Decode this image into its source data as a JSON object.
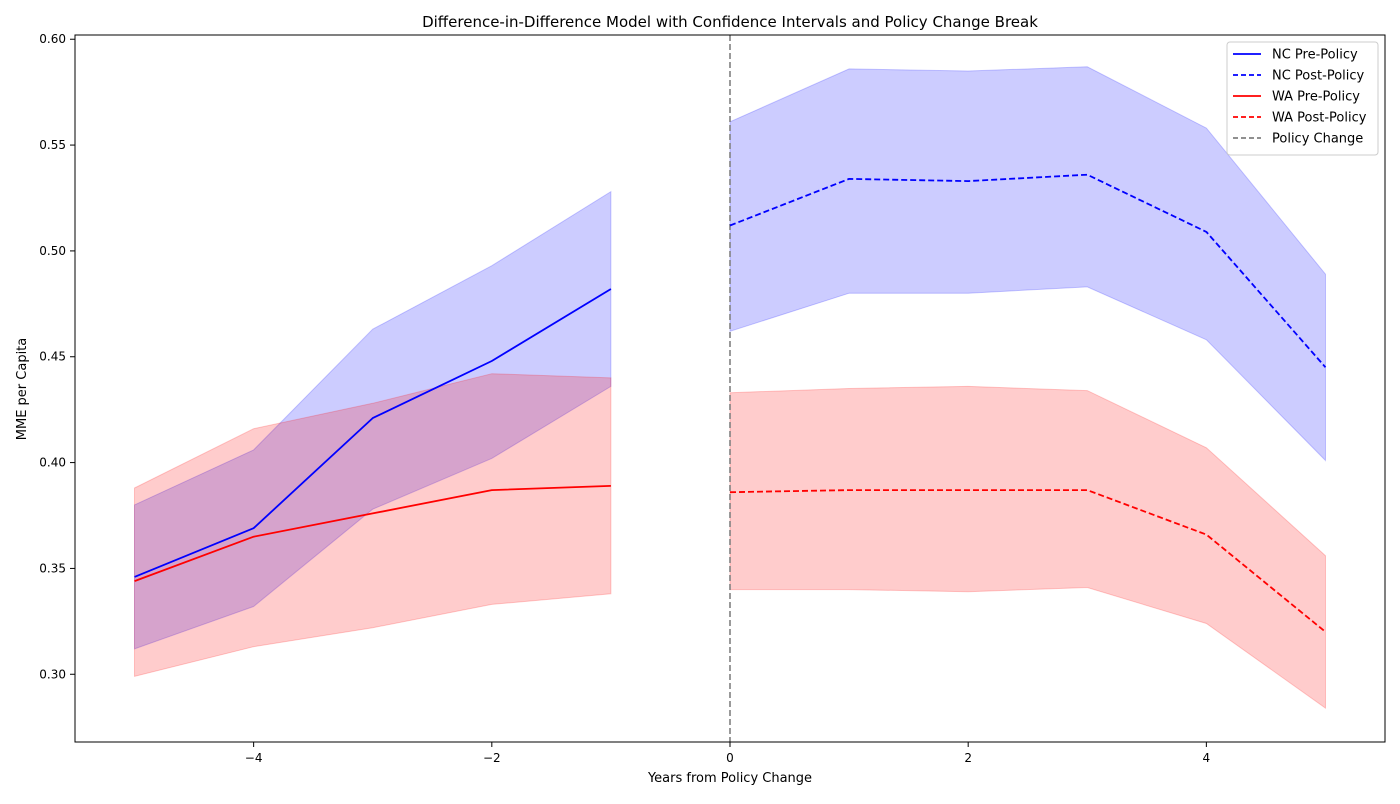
{
  "chart_data": {
    "type": "line",
    "title": "Difference-in-Difference Model with Confidence Intervals and Policy Change Break",
    "xlabel": "Years from Policy Change",
    "ylabel": "MME per Capita",
    "xlim": [
      -5.5,
      5.5
    ],
    "ylim": [
      0.268,
      0.602
    ],
    "xticks": [
      -4,
      -2,
      0,
      2,
      4
    ],
    "xtick_labels": [
      "−4",
      "−2",
      "0",
      "2",
      "4"
    ],
    "yticks": [
      0.3,
      0.35,
      0.4,
      0.45,
      0.5,
      0.55,
      0.6
    ],
    "ytick_labels": [
      "0.30",
      "0.35",
      "0.40",
      "0.45",
      "0.50",
      "0.55",
      "0.60"
    ],
    "grid": false,
    "legend_position": "top-right",
    "series": [
      {
        "name": "NC Pre-Policy",
        "color": "#0000ff",
        "linestyle": "solid",
        "x": [
          -5,
          -4,
          -3,
          -2,
          -1
        ],
        "y": [
          0.346,
          0.369,
          0.421,
          0.448,
          0.482
        ],
        "ci_lower": [
          0.312,
          0.332,
          0.378,
          0.402,
          0.436
        ],
        "ci_upper": [
          0.38,
          0.406,
          0.463,
          0.493,
          0.528
        ]
      },
      {
        "name": "NC Post-Policy",
        "color": "#0000ff",
        "linestyle": "dashed",
        "x": [
          0,
          1,
          2,
          3,
          4,
          5
        ],
        "y": [
          0.512,
          0.534,
          0.533,
          0.536,
          0.509,
          0.445
        ],
        "ci_lower": [
          0.462,
          0.48,
          0.48,
          0.483,
          0.458,
          0.401
        ],
        "ci_upper": [
          0.561,
          0.586,
          0.585,
          0.587,
          0.558,
          0.489
        ]
      },
      {
        "name": "WA Pre-Policy",
        "color": "#ff0000",
        "linestyle": "solid",
        "x": [
          -5,
          -4,
          -3,
          -2,
          -1
        ],
        "y": [
          0.344,
          0.365,
          0.376,
          0.387,
          0.389
        ],
        "ci_lower": [
          0.299,
          0.313,
          0.322,
          0.333,
          0.338
        ],
        "ci_upper": [
          0.388,
          0.416,
          0.428,
          0.442,
          0.44
        ]
      },
      {
        "name": "WA Post-Policy",
        "color": "#ff0000",
        "linestyle": "dashed",
        "x": [
          0,
          1,
          2,
          3,
          4,
          5
        ],
        "y": [
          0.386,
          0.387,
          0.387,
          0.387,
          0.366,
          0.32
        ],
        "ci_lower": [
          0.34,
          0.34,
          0.339,
          0.341,
          0.324,
          0.284
        ],
        "ci_upper": [
          0.433,
          0.435,
          0.436,
          0.434,
          0.407,
          0.356
        ]
      }
    ],
    "vline": {
      "name": "Policy Change",
      "x": 0,
      "color": "#808080",
      "linestyle": "dashed"
    },
    "ci_fill_colors": {
      "nc": "#0000ff",
      "wa": "#ff0000"
    }
  }
}
